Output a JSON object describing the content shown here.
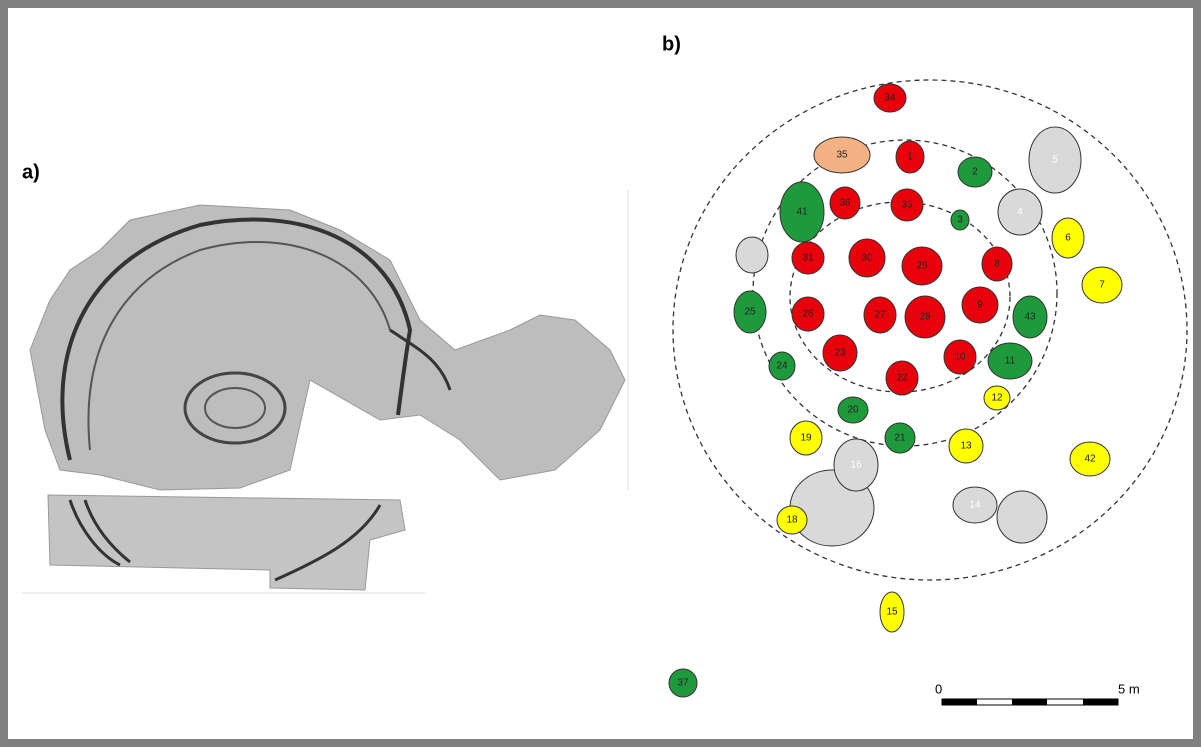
{
  "panels": [
    {
      "label": "a)"
    },
    {
      "label": "b)"
    }
  ],
  "pits": [
    {
      "label": "34",
      "fill": "#e8000b"
    },
    {
      "label": "1",
      "fill": "#e8000b"
    },
    {
      "label": "36",
      "fill": "#e8000b"
    },
    {
      "label": "33",
      "fill": "#e8000b"
    },
    {
      "label": "31",
      "fill": "#e8000b"
    },
    {
      "label": "30",
      "fill": "#e8000b"
    },
    {
      "label": "29",
      "fill": "#e8000b"
    },
    {
      "label": "8",
      "fill": "#e8000b"
    },
    {
      "label": "9",
      "fill": "#e8000b"
    },
    {
      "label": "26",
      "fill": "#e8000b"
    },
    {
      "label": "27",
      "fill": "#e8000b"
    },
    {
      "label": "28",
      "fill": "#e8000b"
    },
    {
      "label": "23",
      "fill": "#e8000b"
    },
    {
      "label": "10",
      "fill": "#e8000b"
    },
    {
      "label": "22",
      "fill": "#e8000b"
    },
    {
      "label": "2",
      "fill": "#1e9a3c"
    },
    {
      "label": "41",
      "fill": "#1e9a3c"
    },
    {
      "label": "3",
      "fill": "#1e9a3c"
    },
    {
      "label": "25",
      "fill": "#1e9a3c"
    },
    {
      "label": "43",
      "fill": "#1e9a3c"
    },
    {
      "label": "11",
      "fill": "#1e9a3c"
    },
    {
      "label": "24",
      "fill": "#1e9a3c"
    },
    {
      "label": "20",
      "fill": "#1e9a3c"
    },
    {
      "label": "21",
      "fill": "#1e9a3c"
    },
    {
      "label": "37",
      "fill": "#1e9a3c"
    },
    {
      "label": "6",
      "fill": "#ffff00"
    },
    {
      "label": "7",
      "fill": "#ffff00"
    },
    {
      "label": "12",
      "fill": "#ffff00"
    },
    {
      "label": "19",
      "fill": "#ffff00"
    },
    {
      "label": "13",
      "fill": "#ffff00"
    },
    {
      "label": "42",
      "fill": "#ffff00"
    },
    {
      "label": "18",
      "fill": "#ffff00"
    },
    {
      "label": "15",
      "fill": "#ffff00"
    },
    {
      "label": "35",
      "fill": "#f4b183"
    },
    {
      "label": "5",
      "fill": "#d9d9d9"
    },
    {
      "label": "4",
      "fill": "#d9d9d9"
    },
    {
      "label": "16",
      "fill": "#d9d9d9"
    },
    {
      "label": "14",
      "fill": "#d9d9d9"
    }
  ],
  "scale": {
    "start": "0",
    "end": "5 m"
  }
}
